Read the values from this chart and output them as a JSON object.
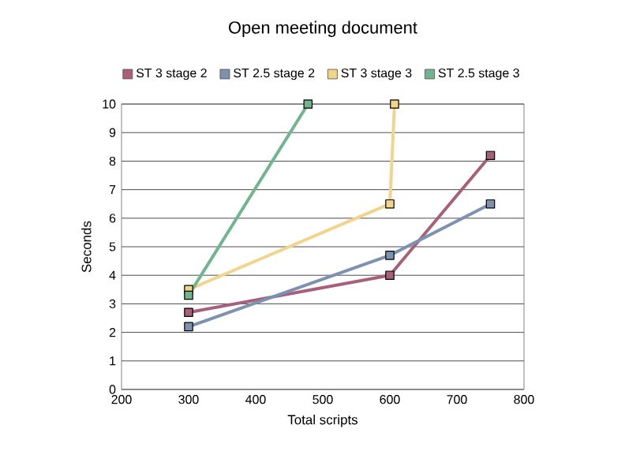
{
  "chart_data": {
    "type": "line",
    "title": "Open meeting document",
    "xlabel": "Total scripts",
    "ylabel": "Seconds",
    "xlim": [
      200,
      800
    ],
    "xticks": [
      200,
      300,
      400,
      500,
      600,
      700,
      800
    ],
    "ylim": [
      0,
      10
    ],
    "yticks": [
      0,
      1,
      2,
      3,
      4,
      5,
      6,
      7,
      8,
      9,
      10
    ],
    "grid": "y",
    "legend": "top",
    "marker": "square",
    "line_style": "solid",
    "series": [
      {
        "name": "ST 3 stage 2",
        "color": "#a8607a",
        "x": [
          300,
          600,
          750
        ],
        "values": [
          2.7,
          4.0,
          8.2
        ]
      },
      {
        "name": "ST 2.5 stage 2",
        "color": "#7d92b0",
        "x": [
          300,
          600,
          750
        ],
        "values": [
          2.2,
          4.7,
          6.5
        ]
      },
      {
        "name": "ST 3 stage 3",
        "color": "#f2d58a",
        "x": [
          300,
          600,
          607
        ],
        "values": [
          3.5,
          6.5,
          10
        ]
      },
      {
        "name": "ST 2.5 stage 3",
        "color": "#70b590",
        "x": [
          300,
          478
        ],
        "values": [
          3.3,
          10
        ]
      }
    ]
  }
}
